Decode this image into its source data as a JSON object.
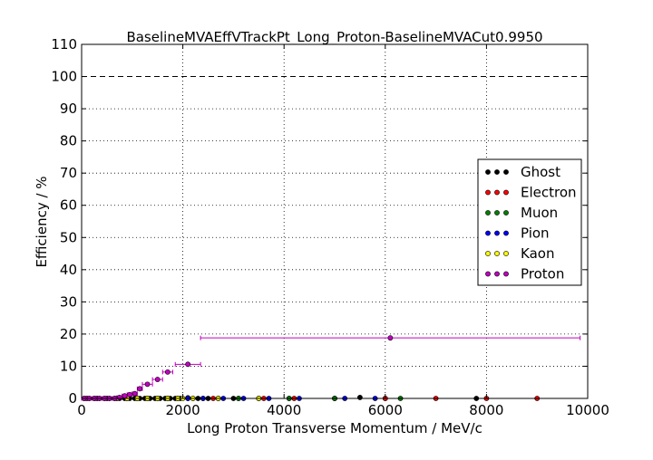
{
  "chart_data": {
    "type": "scatter",
    "title": "BaselineMVAEffVTrackPt_Long_Proton-BaselineMVACut0.9950",
    "xlabel": "Long Proton Transverse Momentum / MeV/c",
    "ylabel": "Efficiency / %",
    "xlim": [
      0,
      10000
    ],
    "ylim": [
      0,
      110
    ],
    "xticks": [
      "0",
      "2000",
      "4000",
      "6000",
      "8000",
      "10000"
    ],
    "yticks": [
      "0",
      "10",
      "20",
      "30",
      "40",
      "50",
      "60",
      "70",
      "80",
      "90",
      "100",
      "110"
    ],
    "reference_line": 100,
    "legend_position": "right",
    "series": [
      {
        "name": "Ghost",
        "color": "#000000",
        "x": [
          50,
          150,
          250,
          350,
          450,
          550,
          650,
          750,
          850,
          950,
          1050,
          1150,
          1250,
          1350,
          1450,
          1550,
          1650,
          1750,
          1850,
          1950,
          2100,
          2300,
          2500,
          2700,
          3000,
          3500,
          4100,
          5000,
          5500,
          6000,
          7800
        ],
        "y": [
          0,
          0,
          0,
          0,
          0,
          0,
          0,
          0,
          0,
          0,
          0,
          0,
          0,
          0,
          0,
          0,
          0,
          0,
          0,
          0,
          0,
          0,
          0,
          0,
          0,
          0,
          0,
          0,
          0.3,
          0,
          0
        ]
      },
      {
        "name": "Electron",
        "color": "#ff0000",
        "x": [
          100,
          300,
          500,
          700,
          900,
          1100,
          1300,
          1500,
          1700,
          1900,
          2200,
          2600,
          3100,
          3600,
          4200,
          5000,
          6000,
          7000,
          8000,
          9000
        ],
        "y": [
          0,
          0,
          0,
          0,
          0,
          0,
          0,
          0,
          0,
          0,
          0,
          0,
          0,
          0,
          0,
          0,
          0,
          0,
          0,
          0
        ]
      },
      {
        "name": "Muon",
        "color": "#008000",
        "x": [
          100,
          300,
          500,
          700,
          900,
          1100,
          1300,
          1500,
          1700,
          1900,
          2100,
          2400,
          2700,
          3100,
          3500,
          4100,
          5000,
          6300
        ],
        "y": [
          0,
          0,
          0,
          0,
          0,
          0,
          0,
          0,
          0,
          0,
          0.2,
          0,
          0,
          0,
          0,
          0,
          0,
          0
        ]
      },
      {
        "name": "Pion",
        "color": "#0000ff",
        "x": [
          100,
          300,
          500,
          700,
          900,
          1100,
          1300,
          1500,
          1700,
          1900,
          2100,
          2400,
          2800,
          3200,
          3700,
          4300,
          5200,
          5800
        ],
        "y": [
          0,
          0,
          0,
          0,
          0,
          0,
          0,
          0,
          0,
          0,
          0,
          0,
          0,
          0,
          0,
          0,
          0,
          0
        ]
      },
      {
        "name": "Kaon",
        "color": "#ffff00",
        "x": [
          100,
          300,
          500,
          700,
          900,
          1100,
          1300,
          1500,
          1700,
          1900,
          2000,
          2200,
          2700,
          3500
        ],
        "y": [
          0,
          0,
          0,
          0,
          0,
          0,
          0,
          0,
          0,
          0,
          0,
          0,
          0,
          0
        ]
      },
      {
        "name": "Proton",
        "color": "#bf00bf",
        "x": [
          50,
          150,
          250,
          350,
          450,
          550,
          650,
          750,
          850,
          950,
          1050,
          1150,
          1300,
          1500,
          1700,
          2100,
          6100
        ],
        "xerr": [
          50,
          50,
          50,
          50,
          50,
          50,
          50,
          50,
          50,
          50,
          50,
          50,
          100,
          100,
          100,
          250,
          3750
        ],
        "y": [
          0,
          0,
          0,
          0,
          0,
          0,
          0,
          0.3,
          0.8,
          1.2,
          1.5,
          3.0,
          4.4,
          5.9,
          8.2,
          10.6,
          18.8
        ]
      }
    ]
  }
}
